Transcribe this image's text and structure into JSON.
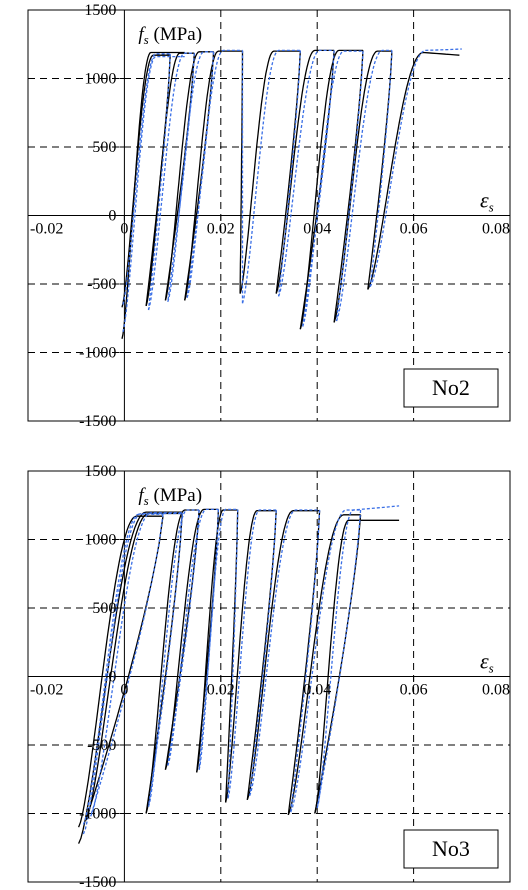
{
  "chart_data": [
    {
      "type": "line",
      "title": "",
      "tag": "No2",
      "ylabel_symbol": "f",
      "ylabel_sub": "s",
      "ylabel_unit": " (MPa)",
      "xlabel_symbol": "ε",
      "xlabel_sub": "s",
      "xlim": [
        -0.02,
        0.08
      ],
      "ylim": [
        -1500,
        1500
      ],
      "xticks": [
        -0.02,
        0,
        0.02,
        0.04,
        0.06,
        0.08
      ],
      "xtick_labels": [
        "-0.02",
        "0",
        "0.02",
        "0.04",
        "0.06",
        "0.08"
      ],
      "yticks": [
        -1500,
        -1000,
        -500,
        0,
        500,
        1000,
        1500
      ],
      "ytick_labels": [
        "-1500",
        "-1000",
        "-500",
        "0",
        "500",
        "1000",
        "1500"
      ],
      "grid": "dashed",
      "series": [
        {
          "color": "#000000",
          "dash": "solid",
          "cycles": [
            {
              "type": "envelope",
              "x0": -0.0005,
              "y0": -900,
              "xp": 0.0055,
              "yp": 1190,
              "xe": 0.0125
            },
            {
              "x0": -0.0005,
              "y0": -670,
              "xp": 0.006,
              "yp": 1170,
              "xe": 0.0095
            },
            {
              "x0": 0.0045,
              "y0": -660,
              "xp": 0.0115,
              "yp": 1185,
              "xe": 0.0145
            },
            {
              "x0": 0.0085,
              "y0": -620,
              "xp": 0.0155,
              "yp": 1195,
              "xe": 0.0185
            },
            {
              "x0": 0.0125,
              "y0": -620,
              "xp": 0.0195,
              "yp": 1200,
              "xe": 0.0245
            },
            {
              "x0": 0.024,
              "y0": -570,
              "xp": 0.031,
              "yp": 1200,
              "xe": 0.0365
            },
            {
              "x0": 0.0315,
              "y0": -570,
              "xp": 0.0395,
              "yp": 1205,
              "xe": 0.0435
            },
            {
              "x0": 0.0365,
              "y0": -830,
              "xp": 0.0445,
              "yp": 1205,
              "xe": 0.0495
            },
            {
              "x0": 0.0435,
              "y0": -780,
              "xp": 0.0525,
              "yp": 1200,
              "xe": 0.0555
            },
            {
              "x0": 0.0505,
              "y0": -540,
              "xp": 0.062,
              "yp": 1190,
              "xe": 0.0695,
              "ye": 1170
            }
          ]
        },
        {
          "color": "#3a6fe6",
          "dash": "3 2",
          "cycles": [
            {
              "type": "envelope",
              "x0": -0.0003,
              "y0": -850,
              "xp": 0.0065,
              "yp": 1160,
              "xe": 0.0125
            },
            {
              "x0": -0.0003,
              "y0": -650,
              "xp": 0.0065,
              "yp": 1180,
              "xe": 0.0095
            },
            {
              "x0": 0.005,
              "y0": -690,
              "xp": 0.0125,
              "yp": 1185,
              "xe": 0.0145
            },
            {
              "x0": 0.009,
              "y0": -630,
              "xp": 0.0165,
              "yp": 1195,
              "xe": 0.0185
            },
            {
              "x0": 0.013,
              "y0": -600,
              "xp": 0.0205,
              "yp": 1205,
              "xe": 0.0245
            },
            {
              "x0": 0.0245,
              "y0": -640,
              "xp": 0.032,
              "yp": 1205,
              "xe": 0.0365
            },
            {
              "x0": 0.032,
              "y0": -590,
              "xp": 0.0405,
              "yp": 1205,
              "xe": 0.0435
            },
            {
              "x0": 0.037,
              "y0": -810,
              "xp": 0.0455,
              "yp": 1200,
              "xe": 0.0495
            },
            {
              "x0": 0.044,
              "y0": -770,
              "xp": 0.0535,
              "yp": 1205,
              "xe": 0.0555
            },
            {
              "x0": 0.051,
              "y0": -520,
              "xp": 0.0625,
              "yp": 1205,
              "xe": 0.07,
              "ye": 1215
            }
          ]
        }
      ]
    },
    {
      "type": "line",
      "title": "",
      "tag": "No3",
      "ylabel_symbol": "f",
      "ylabel_sub": "s",
      "ylabel_unit": " (MPa)",
      "xlabel_symbol": "ε",
      "xlabel_sub": "s",
      "xlim": [
        -0.02,
        0.08
      ],
      "ylim": [
        -1500,
        1500
      ],
      "xticks": [
        -0.02,
        0,
        0.02,
        0.04,
        0.06,
        0.08
      ],
      "xtick_labels": [
        "-0.02",
        "0",
        "0.02",
        "0.04",
        "0.06",
        "0.08"
      ],
      "yticks": [
        -1500,
        -1000,
        -500,
        0,
        500,
        1000,
        1500
      ],
      "ytick_labels": [
        "-1500",
        "-1000",
        "-500",
        "0",
        "500",
        "1000",
        "1500"
      ],
      "grid": "dashed",
      "series": [
        {
          "color": "#000000",
          "dash": "solid",
          "cycles": [
            {
              "type": "envelope",
              "x0": -0.0095,
              "y0": -1220,
              "xp": 0.0045,
              "yp": 1200,
              "xe": 0.012
            },
            {
              "x0": -0.0095,
              "y0": -1100,
              "xp": 0.0025,
              "yp": 1170,
              "xe": 0.008
            },
            {
              "x0": -0.008,
              "y0": -1050,
              "xp": 0.005,
              "yp": 1190,
              "xe": 0.012
            },
            {
              "x0": 0.0045,
              "y0": -1000,
              "xp": 0.0125,
              "yp": 1215,
              "xe": 0.0155
            },
            {
              "x0": 0.0085,
              "y0": -680,
              "xp": 0.0165,
              "yp": 1220,
              "xe": 0.0195
            },
            {
              "x0": 0.015,
              "y0": -700,
              "xp": 0.0205,
              "yp": 1215,
              "xe": 0.0235
            },
            {
              "x0": 0.021,
              "y0": -920,
              "xp": 0.0275,
              "yp": 1210,
              "xe": 0.0315
            },
            {
              "x0": 0.0255,
              "y0": -900,
              "xp": 0.035,
              "yp": 1210,
              "xe": 0.0405
            },
            {
              "x0": 0.034,
              "y0": -1010,
              "xp": 0.0455,
              "yp": 1180,
              "xe": 0.049
            },
            {
              "x0": 0.0395,
              "y0": -1000,
              "xp": 0.0465,
              "yp": 1140,
              "xe": 0.057,
              "ye": 1140
            }
          ]
        },
        {
          "color": "#3a6fe6",
          "dash": "3 2",
          "cycles": [
            {
              "type": "envelope",
              "x0": -0.0085,
              "y0": -1150,
              "xp": 0.0035,
              "yp": 1190,
              "xe": 0.012
            },
            {
              "x0": -0.0085,
              "y0": -1080,
              "xp": 0.003,
              "yp": 1185,
              "xe": 0.008
            },
            {
              "x0": -0.007,
              "y0": -1020,
              "xp": 0.0055,
              "yp": 1195,
              "xe": 0.012
            },
            {
              "x0": 0.005,
              "y0": -950,
              "xp": 0.013,
              "yp": 1215,
              "xe": 0.0155
            },
            {
              "x0": 0.009,
              "y0": -650,
              "xp": 0.017,
              "yp": 1220,
              "xe": 0.0195
            },
            {
              "x0": 0.0155,
              "y0": -680,
              "xp": 0.021,
              "yp": 1220,
              "xe": 0.0235
            },
            {
              "x0": 0.0215,
              "y0": -890,
              "xp": 0.028,
              "yp": 1215,
              "xe": 0.0315
            },
            {
              "x0": 0.026,
              "y0": -870,
              "xp": 0.0355,
              "yp": 1215,
              "xe": 0.0405
            },
            {
              "x0": 0.0345,
              "y0": -990,
              "xp": 0.046,
              "yp": 1215,
              "xe": 0.049
            },
            {
              "x0": 0.04,
              "y0": -960,
              "xp": 0.0475,
              "yp": 1215,
              "xe": 0.057,
              "ye": 1245
            }
          ]
        }
      ]
    }
  ]
}
